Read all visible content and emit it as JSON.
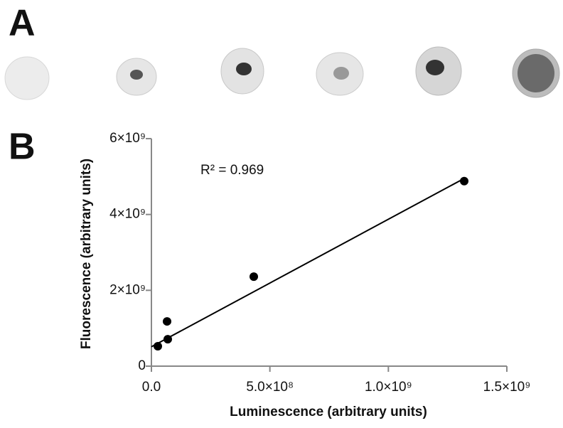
{
  "panels": [
    "A",
    "B"
  ],
  "chart_data": {
    "type": "scatter",
    "x": [
      27000000,
      66000000,
      69000000,
      432000000,
      1320000000
    ],
    "values": [
      525000000,
      1180000000,
      710000000,
      2360000000,
      4880000000
    ],
    "color": "#000000",
    "trend_line": {
      "x": [
        0,
        1320000000
      ],
      "y": [
        510000000,
        4950000000
      ]
    },
    "annotation": "R² = 0.969",
    "xlabel": "Luminescence (arbitrary units)",
    "ylabel": "Fluorescence (arbitrary units)",
    "xlim": [
      0,
      1500000000
    ],
    "xticks": [
      {
        "value": 0,
        "label": "0.0"
      },
      {
        "value": 500000000,
        "label": "5.0×10⁸"
      },
      {
        "value": 1000000000,
        "label": "1.0×10⁹"
      },
      {
        "value": 1500000000,
        "label": "1.5×10⁹"
      }
    ],
    "ylim": [
      0,
      6000000000
    ],
    "yticks": [
      0,
      {
        "value": 2000000000,
        "label": "2×10⁹"
      },
      {
        "value": 4000000000,
        "label": "4×10⁹"
      },
      {
        "value": 6000000000,
        "label": "6×10⁹"
      }
    ]
  }
}
